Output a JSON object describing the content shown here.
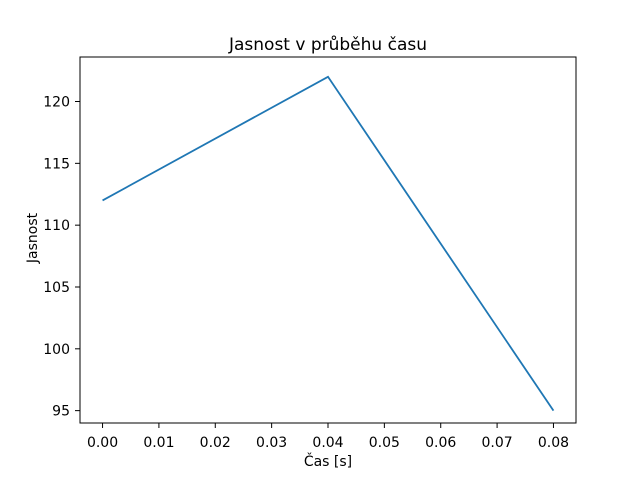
{
  "chart_data": {
    "type": "line",
    "title": "Jasnost v průběhu času",
    "xlabel": "Čas [s]",
    "ylabel": "Jasnost",
    "x": [
      0.0,
      0.04,
      0.08
    ],
    "y": [
      112,
      122,
      95
    ],
    "series": [
      {
        "name": "Jasnost",
        "x": [
          0.0,
          0.04,
          0.08
        ],
        "values": [
          112,
          122,
          95
        ]
      }
    ],
    "x_ticks": [
      0.0,
      0.01,
      0.02,
      0.03,
      0.04,
      0.05,
      0.06,
      0.07,
      0.08
    ],
    "x_tick_labels": [
      "0.00",
      "0.01",
      "0.02",
      "0.03",
      "0.04",
      "0.05",
      "0.06",
      "0.07",
      "0.08"
    ],
    "y_ticks": [
      95,
      100,
      105,
      110,
      115,
      120
    ],
    "y_tick_labels": [
      "95",
      "100",
      "105",
      "110",
      "115",
      "120"
    ],
    "xlim": [
      -0.004,
      0.084
    ],
    "ylim": [
      94.0,
      123.6
    ],
    "grid": false,
    "legend": null,
    "line_color": "#1f77b4",
    "spine_color": "#000000",
    "background_color": "#ffffff",
    "text_color": "#000000"
  }
}
